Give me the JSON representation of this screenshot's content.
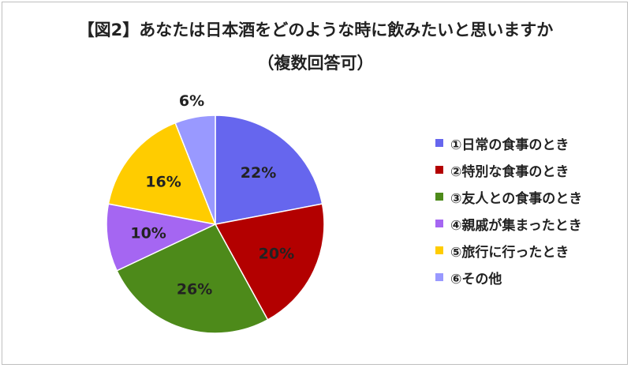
{
  "title_line1": "【図2】あなたは日本酒をどのような時に飲みたいと思いますか",
  "title_line2": "（複数回答可）",
  "chart_data": {
    "type": "pie",
    "categories": [
      "①日常の食事のとき",
      "②特別な食事のとき",
      "③友人との食事のとき",
      "④親戚が集まったとき",
      "⑤旅行に行ったとき",
      "⑥その他"
    ],
    "values": [
      22,
      20,
      26,
      10,
      16,
      6
    ],
    "labels": [
      "22%",
      "20%",
      "26%",
      "10%",
      "16%",
      "6%"
    ],
    "colors": [
      "#6666ee",
      "#b30000",
      "#4d8a1a",
      "#a566f2",
      "#ffcc00",
      "#9999ff"
    ],
    "legend_position": "right",
    "start": "12 o'clock",
    "direction": "clockwise"
  }
}
